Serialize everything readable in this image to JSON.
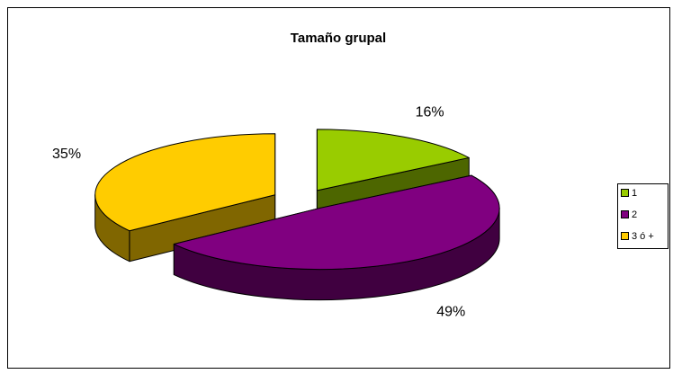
{
  "chart_data": {
    "type": "pie",
    "title": "Tamaño grupal",
    "categories": [
      "1",
      "2",
      "3 ó +"
    ],
    "values": [
      16,
      49,
      35
    ],
    "value_labels": [
      "16%",
      "49%",
      "35%"
    ],
    "colors": [
      "#99cc00",
      "#800080",
      "#ffcc00"
    ],
    "legend": "right"
  }
}
